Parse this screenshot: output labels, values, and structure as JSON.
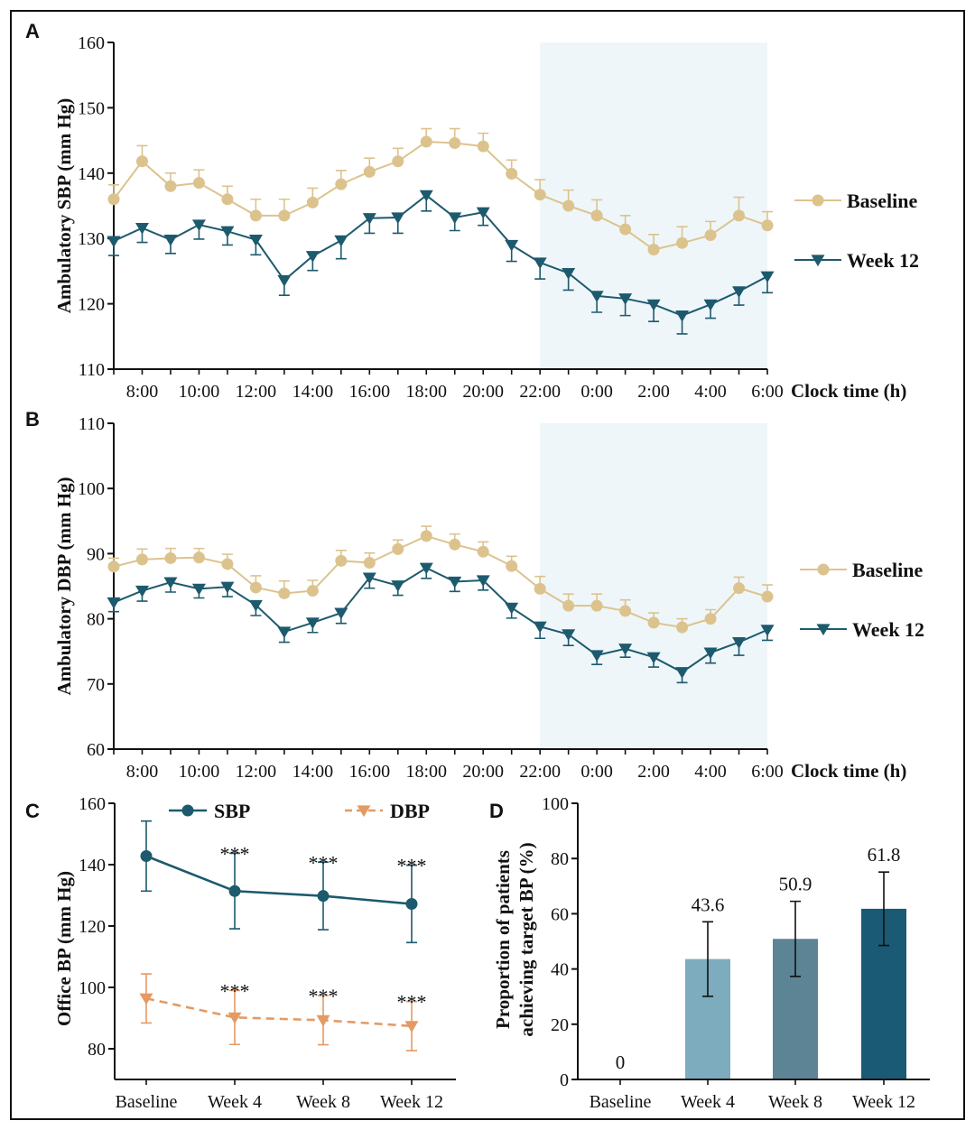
{
  "colors": {
    "baseline": "#dcc38e",
    "week12": "#1d5a6e",
    "sbp": "#1d5a6e",
    "dbp": "#e49a64",
    "night_shade": "#eef6f9",
    "bars": [
      "#7cacbd",
      "#5c8495",
      "#1b5a74"
    ]
  },
  "chart_data": [
    {
      "panel": "A",
      "type": "line",
      "ylabel": "Ambulatory SBP (mm Hg)",
      "xlabel": "Clock time (h)",
      "ylim": [
        110,
        160
      ],
      "yticks": [
        110,
        120,
        130,
        140,
        150,
        160
      ],
      "x_hours": [
        7,
        8,
        9,
        10,
        11,
        12,
        13,
        14,
        15,
        16,
        17,
        18,
        19,
        20,
        21,
        22,
        23,
        24,
        25,
        26,
        27,
        28,
        29,
        30
      ],
      "xlim": [
        7,
        30
      ],
      "xtick_hours": [
        8,
        10,
        12,
        14,
        16,
        18,
        20,
        22,
        24,
        26,
        28,
        30
      ],
      "xtick_labels": [
        "8:00",
        "10:00",
        "12:00",
        "14:00",
        "16:00",
        "18:00",
        "20:00",
        "22:00",
        "0:00",
        "2:00",
        "4:00",
        "6:00"
      ],
      "night_range": [
        22,
        30
      ],
      "series": [
        {
          "name": "Baseline",
          "marker": "circle",
          "values": [
            136,
            141.8,
            138,
            138.5,
            136,
            133.5,
            133.5,
            135.5,
            138.3,
            140.2,
            141.8,
            144.8,
            144.6,
            144.1,
            139.9,
            136.7,
            135,
            133.5,
            131.4,
            128.3,
            129.3,
            130.5,
            133.5,
            132
          ],
          "errors": [
            2.2,
            2.4,
            2,
            2,
            2,
            2.5,
            2.5,
            2.2,
            2.1,
            2.1,
            2,
            2,
            2.2,
            2,
            2.1,
            2.3,
            2.4,
            2.4,
            2.1,
            2.3,
            2.5,
            2.1,
            2.8,
            2.1
          ]
        },
        {
          "name": "Week 12",
          "marker": "triangle-down",
          "values": [
            129.6,
            131.6,
            129.8,
            132.1,
            131.1,
            129.8,
            123.6,
            127.3,
            129.7,
            133.1,
            133.2,
            136.6,
            133.2,
            134,
            129,
            126.3,
            124.7,
            121.2,
            120.8,
            119.9,
            118.2,
            119.9,
            121.9,
            124.2
          ],
          "errors": [
            2.2,
            2.2,
            2.1,
            2.2,
            2.1,
            2.3,
            2.3,
            2.2,
            2.8,
            2.3,
            2.4,
            2.4,
            2,
            2,
            2.5,
            2.5,
            2.6,
            2.5,
            2.6,
            2.6,
            2.8,
            2.1,
            2.1,
            2.5
          ]
        }
      ]
    },
    {
      "panel": "B",
      "type": "line",
      "ylabel": "Ambulatory DBP (mm Hg)",
      "xlabel": "Clock time (h)",
      "ylim": [
        60,
        110
      ],
      "yticks": [
        60,
        70,
        80,
        90,
        100,
        110
      ],
      "x_hours": [
        7,
        8,
        9,
        10,
        11,
        12,
        13,
        14,
        15,
        16,
        17,
        18,
        19,
        20,
        21,
        22,
        23,
        24,
        25,
        26,
        27,
        28,
        29,
        30
      ],
      "xlim": [
        7,
        30
      ],
      "xtick_hours": [
        8,
        10,
        12,
        14,
        16,
        18,
        20,
        22,
        24,
        26,
        28,
        30
      ],
      "xtick_labels": [
        "8:00",
        "10:00",
        "12:00",
        "14:00",
        "16:00",
        "18:00",
        "20:00",
        "22:00",
        "0:00",
        "2:00",
        "4:00",
        "6:00"
      ],
      "night_range": [
        22,
        30
      ],
      "series": [
        {
          "name": "Baseline",
          "marker": "circle",
          "values": [
            88,
            89.1,
            89.3,
            89.4,
            88.4,
            84.8,
            83.9,
            84.3,
            88.9,
            88.6,
            90.7,
            92.7,
            91.4,
            90.3,
            88.1,
            84.6,
            82,
            82,
            81.2,
            79.4,
            78.7,
            80,
            84.7,
            83.4
          ],
          "errors": [
            1.3,
            1.6,
            1.5,
            1.4,
            1.5,
            1.8,
            1.9,
            1.6,
            1.6,
            1.5,
            1.4,
            1.5,
            1.6,
            1.5,
            1.5,
            1.9,
            1.8,
            1.8,
            1.7,
            1.5,
            1.3,
            1.4,
            1.7,
            1.8
          ]
        },
        {
          "name": "Week 12",
          "marker": "triangle-down",
          "values": [
            82.5,
            84.3,
            85.6,
            84.6,
            84.9,
            82.1,
            78,
            79.4,
            80.9,
            86.3,
            85.1,
            87.8,
            85.7,
            85.9,
            81.7,
            78.8,
            77.6,
            74.4,
            75.4,
            74.1,
            71.8,
            74.8,
            76.4,
            78.3
          ],
          "errors": [
            1.4,
            1.6,
            1.5,
            1.4,
            1.5,
            1.6,
            1.6,
            1.5,
            1.6,
            1.6,
            1.5,
            1.6,
            1.5,
            1.5,
            1.6,
            1.8,
            1.7,
            1.4,
            1.3,
            1.5,
            1.6,
            1.6,
            2,
            1.6
          ]
        }
      ]
    },
    {
      "panel": "C",
      "type": "line",
      "ylabel": "Office BP (mm Hg)",
      "categories": [
        "Baseline",
        "Week 4",
        "Week 8",
        "Week 12"
      ],
      "ylim": [
        70,
        160
      ],
      "yticks": [
        80,
        100,
        120,
        140,
        160
      ],
      "series": [
        {
          "name": "SBP",
          "marker": "circle",
          "line": "solid",
          "values": [
            142.8,
            131.4,
            129.8,
            127.2
          ],
          "errors": [
            11.4,
            12.3,
            11,
            12.6
          ],
          "significance": [
            "",
            "***",
            "***",
            "***"
          ]
        },
        {
          "name": "DBP",
          "marker": "triangle-down",
          "line": "dashed",
          "values": [
            96.4,
            90.2,
            89.3,
            87.4
          ],
          "errors": [
            8,
            8.8,
            8,
            8
          ],
          "significance": [
            "",
            "***",
            "***",
            "***"
          ]
        }
      ]
    },
    {
      "panel": "D",
      "type": "bar",
      "ylabel": "Proportion of patients achieving target BP (%)",
      "ylabel_lines": [
        "Proportion of patients",
        "achieving target BP (%)"
      ],
      "categories": [
        "Baseline",
        "Week 4",
        "Week 8",
        "Week 12"
      ],
      "values": [
        0,
        43.6,
        50.9,
        61.8
      ],
      "value_labels": [
        "0",
        "43.6",
        "50.9",
        "61.8"
      ],
      "errors": [
        0,
        13.5,
        13.6,
        13.3
      ],
      "ylim": [
        0,
        100
      ],
      "yticks": [
        0,
        20,
        40,
        60,
        80,
        100
      ]
    }
  ]
}
